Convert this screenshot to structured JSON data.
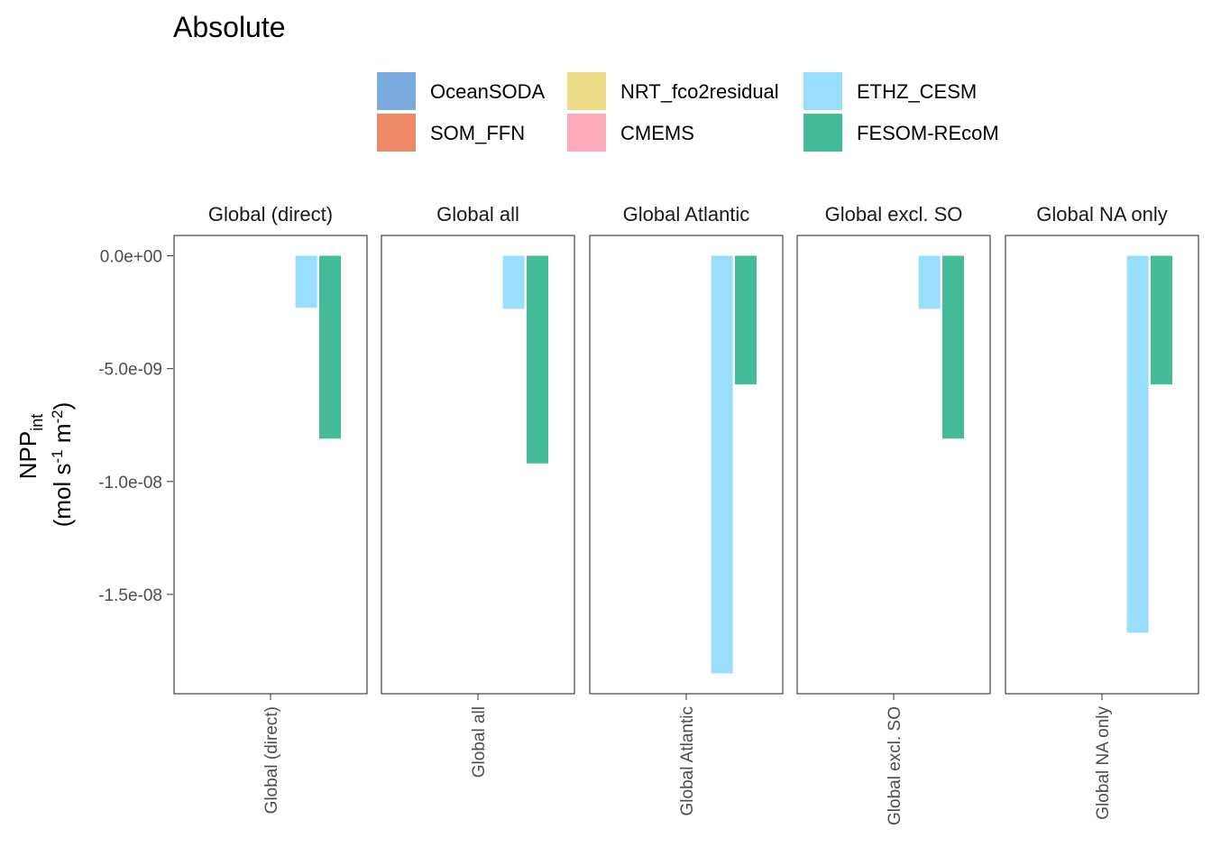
{
  "title": "Absolute",
  "legend": [
    {
      "name": "OceanSODA",
      "color": "#7AABDC"
    },
    {
      "name": "SOM_FFN",
      "color": "#EE8866"
    },
    {
      "name": "NRT_fco2residual",
      "color": "#EEDD88"
    },
    {
      "name": "CMEMS",
      "color": "#FFAABB"
    },
    {
      "name": "ETHZ_CESM",
      "color": "#99DDFF"
    },
    {
      "name": "FESOM-REcoM",
      "color": "#44BB99"
    }
  ],
  "y_axis": {
    "label_main": "NPP",
    "label_sub": "int",
    "unit_prefix": "(mol s",
    "unit_exp1": "-1",
    "unit_mid": " m",
    "unit_exp2": "-2",
    "unit_suffix": ")"
  },
  "chart_data": {
    "type": "bar",
    "title": "Absolute",
    "facets": [
      "Global (direct)",
      "Global all",
      "Global Atlantic",
      "Global excl. SO",
      "Global NA only"
    ],
    "categories": [
      "Global (direct)",
      "Global all",
      "Global Atlantic",
      "Global excl. SO",
      "Global NA only"
    ],
    "series": [
      {
        "name": "OceanSODA",
        "values": [
          null,
          null,
          null,
          null,
          null
        ]
      },
      {
        "name": "SOM_FFN",
        "values": [
          null,
          null,
          null,
          null,
          null
        ]
      },
      {
        "name": "NRT_fco2residual",
        "values": [
          null,
          null,
          null,
          null,
          null
        ]
      },
      {
        "name": "CMEMS",
        "values": [
          null,
          null,
          null,
          null,
          null
        ]
      },
      {
        "name": "ETHZ_CESM",
        "values": [
          -2.3e-09,
          -2.35e-09,
          -1.85e-08,
          -2.35e-09,
          -1.67e-08
        ]
      },
      {
        "name": "FESOM-REcoM",
        "values": [
          -8.1e-09,
          -9.2e-09,
          -5.7e-09,
          -8.1e-09,
          -5.7e-09
        ]
      }
    ],
    "ylim": [
      -1.94e-08,
      9e-10
    ],
    "yticks": [
      0,
      -5e-09,
      -1e-08,
      -1.5e-08
    ],
    "ytick_labels": [
      "0.0e+00",
      "-5.0e-09",
      "-1.0e-08",
      "-1.5e-08"
    ],
    "legend_position": "top",
    "grid": false
  }
}
